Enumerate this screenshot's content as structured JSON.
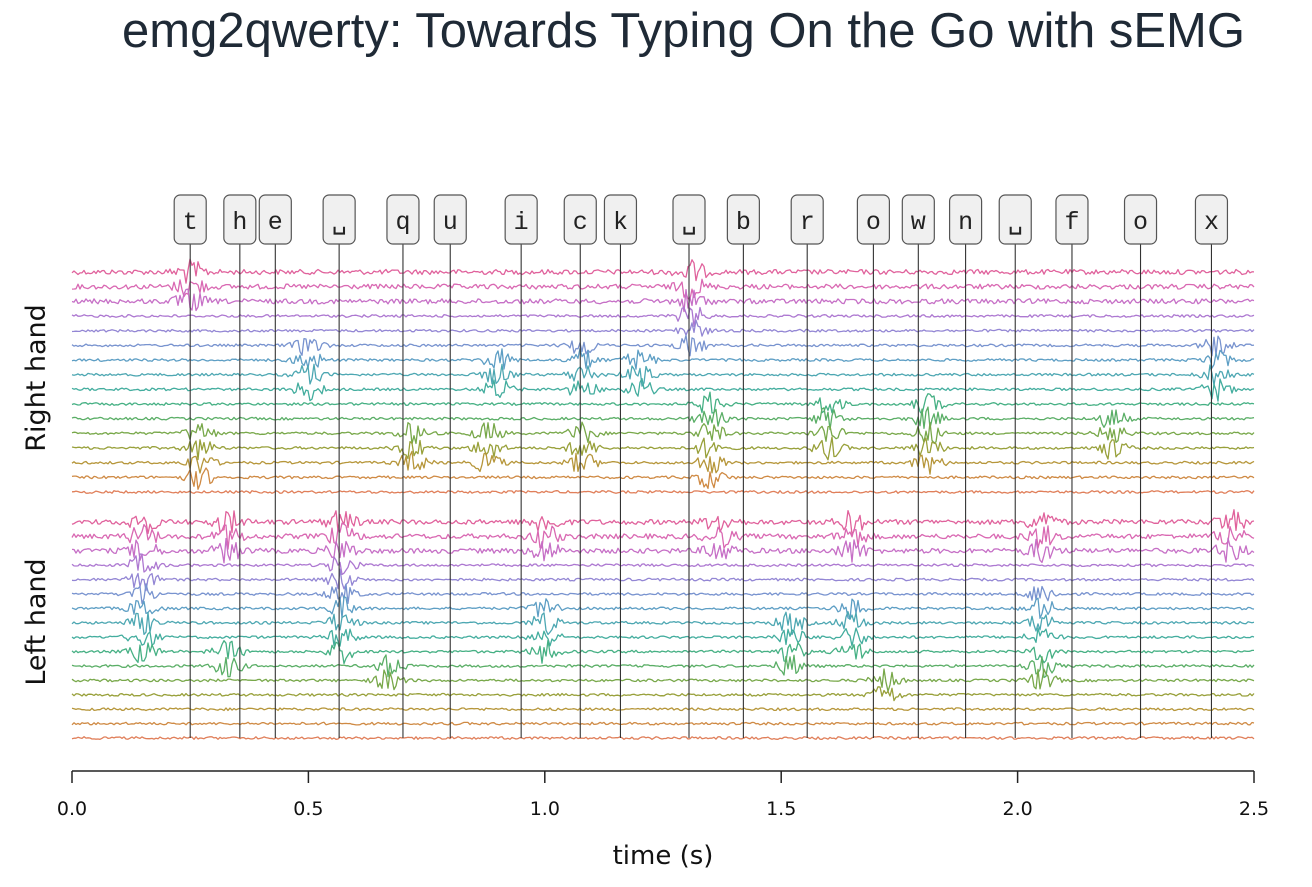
{
  "page": {
    "title": "emg2qwerty: Towards Typing On the Go with sEMG"
  },
  "chart_data": {
    "type": "line",
    "title": "",
    "xlabel": "time (s)",
    "ylabel": "",
    "xlim": [
      0.0,
      2.5
    ],
    "xticks": [
      0.0,
      0.5,
      1.0,
      1.5,
      2.0,
      2.5
    ],
    "xtick_labels": [
      "0.0",
      "0.5",
      "1.0",
      "1.5",
      "2.0",
      "2.5"
    ],
    "grid": false,
    "hand_labels": [
      "Right hand",
      "Left hand"
    ],
    "keystrokes": [
      {
        "key": "t",
        "time": 0.25
      },
      {
        "key": "h",
        "time": 0.355
      },
      {
        "key": "e",
        "time": 0.43
      },
      {
        "key": "␣",
        "time": 0.565
      },
      {
        "key": "q",
        "time": 0.7
      },
      {
        "key": "u",
        "time": 0.8
      },
      {
        "key": "i",
        "time": 0.95
      },
      {
        "key": "c",
        "time": 1.075
      },
      {
        "key": "k",
        "time": 1.16
      },
      {
        "key": "␣",
        "time": 1.305
      },
      {
        "key": "b",
        "time": 1.42
      },
      {
        "key": "r",
        "time": 1.555
      },
      {
        "key": "o",
        "time": 1.695
      },
      {
        "key": "w",
        "time": 1.79
      },
      {
        "key": "n",
        "time": 1.89
      },
      {
        "key": "␣",
        "time": 1.995
      },
      {
        "key": "f",
        "time": 2.115
      },
      {
        "key": "o",
        "time": 2.26
      },
      {
        "key": "x",
        "time": 2.41
      }
    ],
    "channels_per_hand": 16,
    "channel_colors": [
      "#e0629c",
      "#d968b2",
      "#c66fc6",
      "#ad78d1",
      "#9386d4",
      "#7893cf",
      "#5d9ec4",
      "#4da7b2",
      "#43ad9e",
      "#46b084",
      "#5aae66",
      "#78a84a",
      "#98a03a",
      "#b6963a",
      "#cf8a44",
      "#e07f5a"
    ],
    "activity_bursts": {
      "right_hand": [
        {
          "time": 0.25,
          "channels": [
            0,
            1,
            2
          ]
        },
        {
          "time": 0.27,
          "channels": [
            11,
            12,
            13,
            14
          ]
        },
        {
          "time": 0.5,
          "channels": [
            5,
            6,
            7,
            8
          ]
        },
        {
          "time": 0.72,
          "channels": [
            11,
            12,
            13
          ]
        },
        {
          "time": 0.88,
          "channels": [
            11,
            12,
            13
          ]
        },
        {
          "time": 0.9,
          "channels": [
            6,
            7,
            8
          ]
        },
        {
          "time": 1.08,
          "channels": [
            5,
            6,
            7,
            8,
            11,
            12,
            13
          ]
        },
        {
          "time": 1.2,
          "channels": [
            6,
            7,
            8
          ]
        },
        {
          "time": 1.31,
          "channels": [
            0,
            1,
            2,
            3,
            4,
            5
          ]
        },
        {
          "time": 1.35,
          "channels": [
            9,
            10,
            11,
            12,
            13,
            14
          ]
        },
        {
          "time": 1.6,
          "channels": [
            9,
            10,
            11,
            12
          ]
        },
        {
          "time": 1.81,
          "channels": [
            9,
            10,
            11,
            12,
            13
          ]
        },
        {
          "time": 2.2,
          "channels": [
            10,
            11,
            12
          ]
        },
        {
          "time": 2.42,
          "channels": [
            5,
            6,
            7,
            8
          ]
        }
      ],
      "left_hand": [
        {
          "time": 0.15,
          "channels": [
            0,
            1,
            2,
            3,
            4,
            5,
            6,
            7,
            8,
            9
          ]
        },
        {
          "time": 0.33,
          "channels": [
            0,
            1,
            2,
            9,
            10
          ]
        },
        {
          "time": 0.57,
          "channels": [
            0,
            1,
            2,
            3,
            4,
            5,
            6,
            7,
            8,
            9
          ]
        },
        {
          "time": 0.67,
          "channels": [
            10,
            11
          ]
        },
        {
          "time": 1.0,
          "channels": [
            0,
            1,
            2,
            6,
            7,
            8,
            9
          ]
        },
        {
          "time": 1.37,
          "channels": [
            0,
            1,
            2
          ]
        },
        {
          "time": 1.52,
          "channels": [
            7,
            8,
            9,
            10
          ]
        },
        {
          "time": 1.65,
          "channels": [
            0,
            1,
            2,
            6,
            7,
            8,
            9
          ]
        },
        {
          "time": 1.72,
          "channels": [
            11,
            12
          ]
        },
        {
          "time": 2.05,
          "channels": [
            0,
            1,
            2,
            5,
            6,
            7,
            8,
            9,
            10,
            11
          ]
        },
        {
          "time": 2.45,
          "channels": [
            0,
            1,
            2
          ]
        }
      ]
    }
  }
}
